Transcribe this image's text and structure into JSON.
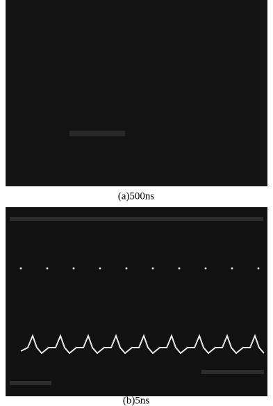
{
  "figure": {
    "panels": [
      {
        "caption": "(a)500ns"
      },
      {
        "caption": "(b)5ns"
      }
    ]
  }
}
